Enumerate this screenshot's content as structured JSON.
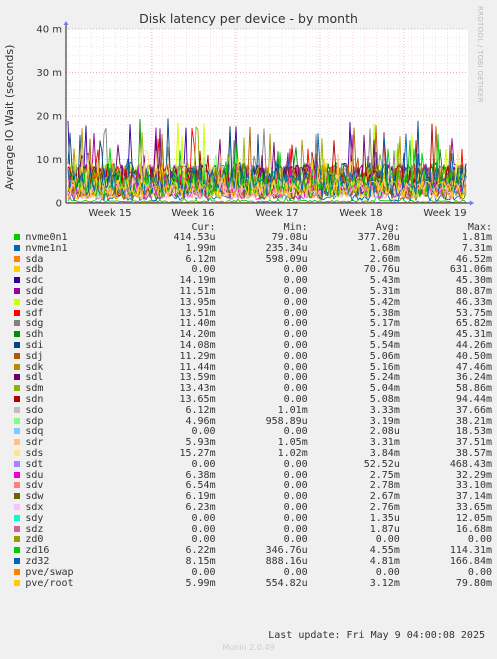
{
  "title": "Disk latency per device - by month",
  "ylabel": "Average IO Wait (seconds)",
  "credit": "RRDTOOL / TOBI OETIKER",
  "last_update": "Last update: Fri May  9 04:00:08 2025",
  "footer": "Munin 2.0.49",
  "legend_headers": [
    "Cur:",
    "Min:",
    "Avg:",
    "Max:"
  ],
  "chart_data": {
    "type": "line",
    "title": "Disk latency per device - by month",
    "ylabel": "Average IO Wait (seconds)",
    "ylim": [
      0,
      0.04
    ],
    "y_ticks": [
      {
        "v": 0,
        "label": "0"
      },
      {
        "v": 0.01,
        "label": "10 m"
      },
      {
        "v": 0.02,
        "label": "20 m"
      },
      {
        "v": 0.03,
        "label": "30 m"
      },
      {
        "v": 0.04,
        "label": "40 m"
      }
    ],
    "x_ticks": [
      "Week 15",
      "Week 16",
      "Week 17",
      "Week 18",
      "Week 19"
    ],
    "grid": true,
    "series": [
      {
        "name": "nvme0n1",
        "color": "#00cc00",
        "cur": "414.53u",
        "min": "79.08u",
        "avg": "377.20u",
        "max": "1.81m"
      },
      {
        "name": "nvme1n1",
        "color": "#0066b3",
        "cur": "1.99m",
        "min": "235.34u",
        "avg": "1.68m",
        "max": "7.31m"
      },
      {
        "name": "sda",
        "color": "#ff8000",
        "cur": "6.12m",
        "min": "598.09u",
        "avg": "2.60m",
        "max": "46.52m"
      },
      {
        "name": "sdb",
        "color": "#ffcc00",
        "cur": "0.00",
        "min": "0.00",
        "avg": "70.76u",
        "max": "631.06m"
      },
      {
        "name": "sdc",
        "color": "#330099",
        "cur": "14.19m",
        "min": "0.00",
        "avg": "5.43m",
        "max": "45.30m"
      },
      {
        "name": "sdd",
        "color": "#990099",
        "cur": "11.51m",
        "min": "0.00",
        "avg": "5.31m",
        "max": "80.87m"
      },
      {
        "name": "sde",
        "color": "#ccff00",
        "cur": "13.95m",
        "min": "0.00",
        "avg": "5.42m",
        "max": "46.33m"
      },
      {
        "name": "sdf",
        "color": "#ff0000",
        "cur": "13.51m",
        "min": "0.00",
        "avg": "5.38m",
        "max": "53.75m"
      },
      {
        "name": "sdg",
        "color": "#808080",
        "cur": "11.40m",
        "min": "0.00",
        "avg": "5.17m",
        "max": "65.82m"
      },
      {
        "name": "sdh",
        "color": "#008f00",
        "cur": "14.20m",
        "min": "0.00",
        "avg": "5.49m",
        "max": "45.31m"
      },
      {
        "name": "sdi",
        "color": "#00487d",
        "cur": "14.08m",
        "min": "0.00",
        "avg": "5.54m",
        "max": "44.26m"
      },
      {
        "name": "sdj",
        "color": "#b35a00",
        "cur": "11.29m",
        "min": "0.00",
        "avg": "5.06m",
        "max": "40.50m"
      },
      {
        "name": "sdk",
        "color": "#b38f00",
        "cur": "11.44m",
        "min": "0.00",
        "avg": "5.16m",
        "max": "47.46m"
      },
      {
        "name": "sdl",
        "color": "#6b006b",
        "cur": "13.59m",
        "min": "0.00",
        "avg": "5.24m",
        "max": "36.24m"
      },
      {
        "name": "sdm",
        "color": "#8fb300",
        "cur": "13.43m",
        "min": "0.00",
        "avg": "5.04m",
        "max": "58.86m"
      },
      {
        "name": "sdn",
        "color": "#b30000",
        "cur": "13.65m",
        "min": "0.00",
        "avg": "5.08m",
        "max": "94.44m"
      },
      {
        "name": "sdo",
        "color": "#bebebe",
        "cur": "6.12m",
        "min": "1.01m",
        "avg": "3.33m",
        "max": "37.66m"
      },
      {
        "name": "sdp",
        "color": "#80ff80",
        "cur": "4.96m",
        "min": "958.89u",
        "avg": "3.19m",
        "max": "38.21m"
      },
      {
        "name": "sdq",
        "color": "#80c9ff",
        "cur": "0.00",
        "min": "0.00",
        "avg": "2.08u",
        "max": "18.53m"
      },
      {
        "name": "sdr",
        "color": "#ffc080",
        "cur": "5.93m",
        "min": "1.05m",
        "avg": "3.31m",
        "max": "37.51m"
      },
      {
        "name": "sds",
        "color": "#ffe680",
        "cur": "15.27m",
        "min": "1.02m",
        "avg": "3.84m",
        "max": "38.57m"
      },
      {
        "name": "sdt",
        "color": "#aa80ff",
        "cur": "0.00",
        "min": "0.00",
        "avg": "52.52u",
        "max": "468.43m"
      },
      {
        "name": "sdu",
        "color": "#ee00cc",
        "cur": "6.38m",
        "min": "0.00",
        "avg": "2.75m",
        "max": "32.29m"
      },
      {
        "name": "sdv",
        "color": "#ff8080",
        "cur": "6.54m",
        "min": "0.00",
        "avg": "2.78m",
        "max": "33.10m"
      },
      {
        "name": "sdw",
        "color": "#666600",
        "cur": "6.19m",
        "min": "0.00",
        "avg": "2.67m",
        "max": "37.14m"
      },
      {
        "name": "sdx",
        "color": "#ffbfff",
        "cur": "6.23m",
        "min": "0.00",
        "avg": "2.76m",
        "max": "33.65m"
      },
      {
        "name": "sdy",
        "color": "#00ffcc",
        "cur": "0.00",
        "min": "0.00",
        "avg": "1.35u",
        "max": "12.05m"
      },
      {
        "name": "sdz",
        "color": "#cc6699",
        "cur": "0.00",
        "min": "0.00",
        "avg": "1.87u",
        "max": "16.68m"
      },
      {
        "name": "zd0",
        "color": "#999900",
        "cur": "0.00",
        "min": "0.00",
        "avg": "0.00",
        "max": "0.00"
      },
      {
        "name": "zd16",
        "color": "#00cc00",
        "cur": "6.22m",
        "min": "346.76u",
        "avg": "4.55m",
        "max": "114.31m"
      },
      {
        "name": "zd32",
        "color": "#0066b3",
        "cur": "8.15m",
        "min": "888.16u",
        "avg": "4.81m",
        "max": "166.84m"
      },
      {
        "name": "pve/swap",
        "color": "#ff8000",
        "cur": "0.00",
        "min": "0.00",
        "avg": "0.00",
        "max": "0.00"
      },
      {
        "name": "pve/root",
        "color": "#ffcc00",
        "cur": "5.99m",
        "min": "554.82u",
        "avg": "3.12m",
        "max": "79.80m"
      }
    ]
  }
}
